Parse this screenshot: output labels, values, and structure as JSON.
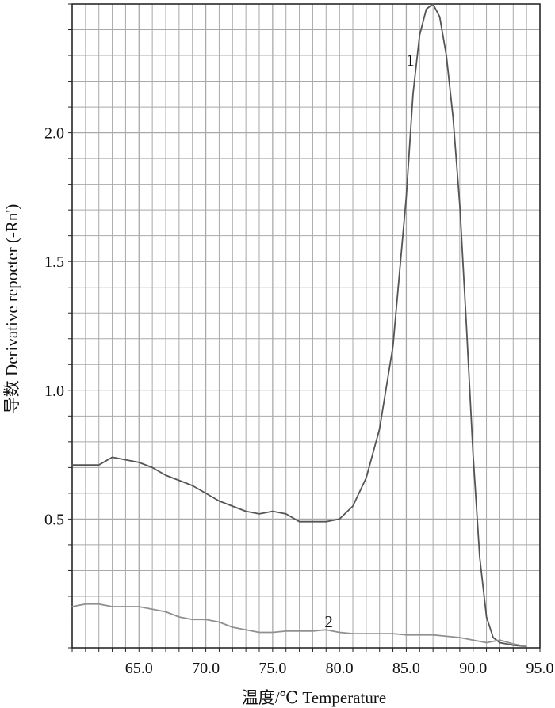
{
  "chart_data": {
    "type": "line",
    "title": "",
    "xlabel": "温度/℃  Temperature",
    "ylabel": "导数  Derivative repoeter (-Rn')",
    "xlim": [
      60.0,
      95.0
    ],
    "ylim": [
      0.0,
      2.5
    ],
    "xticks": [
      "65.0",
      "70.0",
      "75.0",
      "80.0",
      "85.0",
      "90.0",
      "95.0"
    ],
    "yticks": [
      "0.5",
      "1.0",
      "1.5",
      "2.0"
    ],
    "grid": true,
    "colors": {
      "series1": "#555555",
      "series2": "#909090",
      "grid": "#a9a9a9",
      "frame": "#222222"
    },
    "series": [
      {
        "label": "1",
        "x": [
          60.0,
          61.0,
          62.0,
          63.0,
          64.0,
          65.0,
          66.0,
          67.0,
          68.0,
          69.0,
          70.0,
          71.0,
          72.0,
          73.0,
          74.0,
          75.0,
          76.0,
          77.0,
          78.0,
          79.0,
          80.0,
          81.0,
          82.0,
          83.0,
          84.0,
          85.0,
          85.5,
          86.0,
          86.5,
          87.0,
          87.5,
          88.0,
          88.5,
          89.0,
          89.5,
          90.0,
          90.5,
          91.0,
          91.5,
          92.0,
          93.0,
          94.0
        ],
        "values": [
          0.71,
          0.71,
          0.71,
          0.74,
          0.73,
          0.72,
          0.7,
          0.67,
          0.65,
          0.63,
          0.6,
          0.57,
          0.55,
          0.53,
          0.52,
          0.53,
          0.52,
          0.49,
          0.49,
          0.49,
          0.5,
          0.55,
          0.66,
          0.85,
          1.17,
          1.75,
          2.15,
          2.38,
          2.48,
          2.5,
          2.45,
          2.3,
          2.06,
          1.72,
          1.25,
          0.75,
          0.35,
          0.12,
          0.04,
          0.02,
          0.01,
          0.005
        ]
      },
      {
        "label": "2",
        "x": [
          60.0,
          61.0,
          62.0,
          63.0,
          64.0,
          65.0,
          66.0,
          67.0,
          68.0,
          69.0,
          70.0,
          71.0,
          72.0,
          73.0,
          74.0,
          75.0,
          76.0,
          77.0,
          78.0,
          79.0,
          80.0,
          81.0,
          82.0,
          83.0,
          84.0,
          85.0,
          86.0,
          87.0,
          88.0,
          89.0,
          90.0,
          91.0,
          92.0,
          93.0,
          94.0
        ],
        "values": [
          0.16,
          0.17,
          0.17,
          0.16,
          0.16,
          0.16,
          0.15,
          0.14,
          0.12,
          0.11,
          0.11,
          0.1,
          0.08,
          0.07,
          0.06,
          0.06,
          0.065,
          0.065,
          0.065,
          0.07,
          0.06,
          0.055,
          0.055,
          0.055,
          0.055,
          0.05,
          0.05,
          0.05,
          0.045,
          0.04,
          0.03,
          0.02,
          0.03,
          0.015,
          0.005
        ]
      }
    ]
  }
}
